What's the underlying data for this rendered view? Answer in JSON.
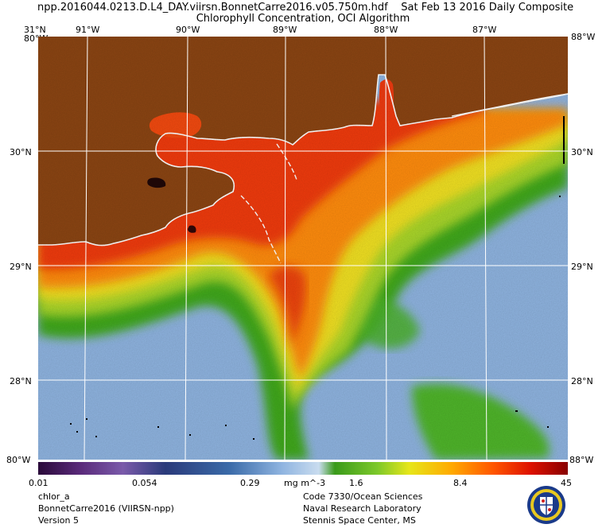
{
  "header": {
    "file": "npp.2016044.0213.D.L4_DAY.viirsn.BonnetCarre2016.v05.750m.hdf",
    "date": "Sat Feb 13 2016 Daily Composite",
    "subtitle": "Chlorophyll Concentration, OCI Algorithm"
  },
  "map": {
    "lon_labels": [
      "91°W",
      "90°W",
      "89°W",
      "88°W",
      "87°W"
    ],
    "lat_labels": [
      "30°N",
      "29°N",
      "28°N"
    ],
    "corner_top": "31°N",
    "corner_bottom": "80°W",
    "corner_top_right": "88°W",
    "corner_bottom_right": "88°W",
    "colors": {
      "land": "#8B4513",
      "low_chl": "#8fb4e0",
      "mid_chl": "#44aa22",
      "high_chl": "#ff6600",
      "very_high_chl": "#ee2200",
      "coast": "#ffffff"
    }
  },
  "colorbar": {
    "unit": "mg m^-3",
    "labels": [
      "0.01",
      "0.054",
      "0.29",
      "1.6",
      "8.4",
      "45"
    ],
    "stops": [
      "#2a0a3a",
      "#5a2a7a",
      "#7a5aaa",
      "#2a3a7a",
      "#3a6aa8",
      "#8fb4e0",
      "#c9dcef",
      "#3a9a1a",
      "#7cc82a",
      "#e6e61a",
      "#ffaa00",
      "#ff5500",
      "#dd1100",
      "#880000"
    ]
  },
  "footer": {
    "left": [
      "chlor_a",
      "BonnetCarre2016 (VIIRSN-npp)",
      "Version 5"
    ],
    "right": [
      "Code 7330/Ocean Sciences",
      "Naval Research Laboratory",
      "Stennis Space Center, MS"
    ]
  }
}
